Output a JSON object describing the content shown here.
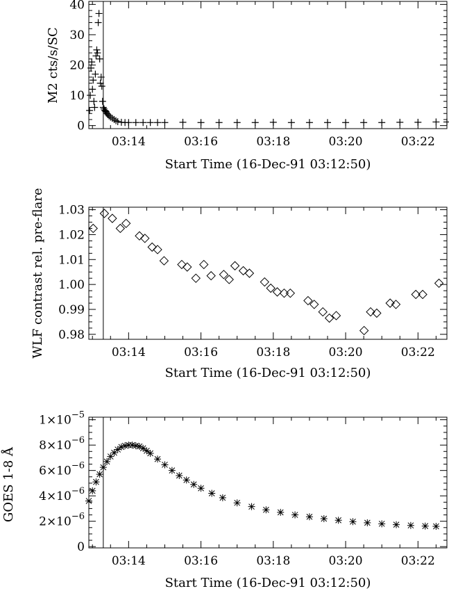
{
  "panels": [
    {
      "xlabel": "Start Time (16-Dec-91 03:12:50)",
      "ylabel": "M2 cts/s/SC",
      "xticks": [
        "03:14",
        "03:16",
        "03:18",
        "03:20",
        "03:22"
      ],
      "yticks": [
        "0",
        "10",
        "20",
        "30",
        "40"
      ]
    },
    {
      "xlabel": "Start Time (16-Dec-91 03:12:50)",
      "ylabel": "WLF contrast rel. pre-flare",
      "xticks": [
        "03:14",
        "03:16",
        "03:18",
        "03:20",
        "03:22"
      ],
      "yticks": [
        "0.98",
        "0.99",
        "1.00",
        "1.01",
        "1.02",
        "1.03"
      ]
    },
    {
      "xlabel": "Start Time (16-Dec-91 03:12:50)",
      "ylabel": "GOES 1-8 Å",
      "xticks": [
        "03:14",
        "03:16",
        "03:18",
        "03:20",
        "03:22"
      ],
      "yticks": [
        {
          "mant": "0",
          "exp": ""
        },
        {
          "mant": "2×10",
          "exp": "−6"
        },
        {
          "mant": "4×10",
          "exp": "−6"
        },
        {
          "mant": "6×10",
          "exp": "−6"
        },
        {
          "mant": "8×10",
          "exp": "−6"
        },
        {
          "mant": "1×10",
          "exp": "−5"
        }
      ]
    }
  ],
  "chart_data": [
    {
      "type": "scatter",
      "marker": "plus",
      "xlabel": "Start Time (16-Dec-91 03:12:50)",
      "ylabel": "M2 cts/s/SC",
      "x_unit": "minutes after 03:00",
      "xlim": [
        12.9,
        22.8
      ],
      "ylim": [
        -1,
        41
      ],
      "vline_x": 13.3,
      "series": [
        {
          "x": [
            12.92,
            12.94,
            12.96,
            12.98,
            13.0,
            13.02,
            13.04,
            13.06,
            13.08,
            13.1,
            13.12,
            13.14,
            13.16,
            13.18,
            13.2,
            13.22,
            13.24,
            13.26,
            13.28,
            13.3,
            13.32,
            13.34,
            13.36,
            13.38,
            13.4,
            13.43,
            13.46,
            13.5,
            13.55,
            13.6,
            13.65,
            13.7,
            13.8,
            13.9,
            14.0,
            14.2,
            14.4,
            14.6,
            14.8,
            15.0,
            15.5,
            16.0,
            16.5,
            17.0,
            17.5,
            18.0,
            18.5,
            19.0,
            19.5,
            20.0,
            20.5,
            21.0,
            21.5,
            22.0,
            22.5,
            22.8
          ],
          "y": [
            5,
            10,
            19,
            21,
            12,
            15,
            8,
            6,
            17,
            23,
            25,
            24,
            34,
            37,
            22,
            14,
            16,
            13,
            8,
            6,
            5.5,
            5,
            4.8,
            4.5,
            4,
            3.6,
            3.2,
            2.8,
            2.4,
            2,
            1.6,
            1.3,
            1.1,
            1,
            1,
            1,
            1,
            1,
            1,
            1,
            1.1,
            1,
            1,
            1,
            1,
            1.1,
            1,
            1,
            1,
            1,
            1,
            1,
            1.1,
            1.1,
            1.2,
            1.2
          ]
        }
      ]
    },
    {
      "type": "scatter",
      "marker": "diamond",
      "xlabel": "Start Time (16-Dec-91 03:12:50)",
      "ylabel": "WLF contrast rel. pre-flare",
      "x_unit": "minutes after 03:00",
      "xlim": [
        12.9,
        22.8
      ],
      "ylim": [
        0.978,
        1.031
      ],
      "vline_x": 13.3,
      "series": [
        {
          "x": [
            13.02,
            13.33,
            13.55,
            13.77,
            13.93,
            14.3,
            14.45,
            14.65,
            14.8,
            14.98,
            15.47,
            15.62,
            15.86,
            16.08,
            16.28,
            16.63,
            16.78,
            16.94,
            17.17,
            17.34,
            17.76,
            17.93,
            18.11,
            18.3,
            18.47,
            18.96,
            19.13,
            19.37,
            19.55,
            19.74,
            20.51,
            20.69,
            20.86,
            21.23,
            21.39,
            21.94,
            22.13,
            22.58
          ],
          "y": [
            1.0225,
            1.0285,
            1.0265,
            1.0225,
            1.0245,
            1.0195,
            1.0185,
            1.015,
            1.014,
            1.0095,
            1.008,
            1.007,
            1.0025,
            1.008,
            1.0035,
            1.004,
            1.002,
            1.0075,
            1.0055,
            1.0045,
            1.001,
            0.9985,
            0.997,
            0.9965,
            0.9965,
            0.9935,
            0.992,
            0.989,
            0.9865,
            0.9875,
            0.9815,
            0.989,
            0.9885,
            0.9925,
            0.992,
            0.996,
            0.996,
            1.0005
          ]
        }
      ]
    },
    {
      "type": "scatter",
      "marker": "asterisk",
      "xlabel": "Start Time (16-Dec-91 03:12:50)",
      "ylabel": "GOES 1-8 Å",
      "x_unit": "minutes after 03:00",
      "xlim": [
        12.9,
        22.8
      ],
      "ylim": [
        -1e-07,
        1.02e-05
      ],
      "vline_x": 13.3,
      "series": [
        {
          "x": [
            12.9,
            13.0,
            13.1,
            13.2,
            13.3,
            13.4,
            13.5,
            13.6,
            13.7,
            13.8,
            13.9,
            14.0,
            14.1,
            14.2,
            14.3,
            14.4,
            14.5,
            14.6,
            14.8,
            15.0,
            15.2,
            15.4,
            15.6,
            15.8,
            16.0,
            16.3,
            16.6,
            17.0,
            17.4,
            17.8,
            18.2,
            18.6,
            19.0,
            19.4,
            19.8,
            20.2,
            20.6,
            21.0,
            21.4,
            21.8,
            22.2,
            22.5
          ],
          "y": [
            3.6e-06,
            4.4e-06,
            5.1e-06,
            5.7e-06,
            6.25e-06,
            6.7e-06,
            7.1e-06,
            7.4e-06,
            7.65e-06,
            7.85e-06,
            7.95e-06,
            8e-06,
            8e-06,
            7.95e-06,
            7.9e-06,
            7.75e-06,
            7.55e-06,
            7.35e-06,
            6.9e-06,
            6.45e-06,
            6e-06,
            5.6e-06,
            5.25e-06,
            4.9e-06,
            4.6e-06,
            4.2e-06,
            3.85e-06,
            3.45e-06,
            3.15e-06,
            2.9e-06,
            2.7e-06,
            2.5e-06,
            2.35e-06,
            2.2e-06,
            2.08e-06,
            1.97e-06,
            1.88e-06,
            1.8e-06,
            1.73e-06,
            1.67e-06,
            1.62e-06,
            1.6e-06
          ]
        }
      ]
    }
  ]
}
